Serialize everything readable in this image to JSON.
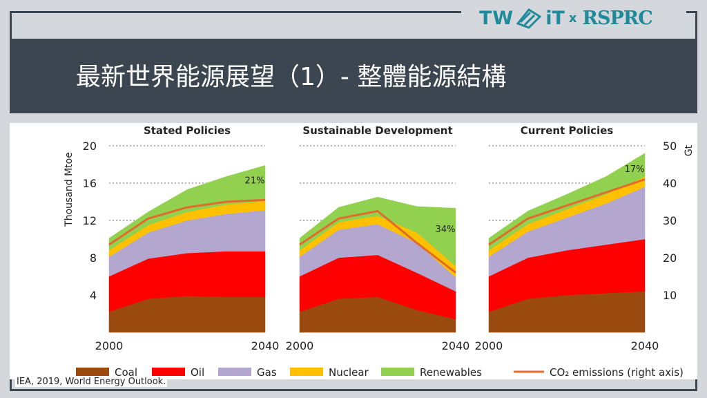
{
  "slide": {
    "title": "最新世界能源展望（1）- 整體能源結構",
    "source": "IEA, 2019, World Energy Outlook.",
    "logo": {
      "tw": "TW",
      "it": "iT",
      "x": "x",
      "partner": "RSPRC"
    }
  },
  "colors": {
    "frame": "#3b4650",
    "background": "#d4d8dc",
    "coal": "#9a4a0e",
    "oil": "#ff0000",
    "gas": "#b3a6cf",
    "nuclear": "#ffc000",
    "renewables": "#92d050",
    "co2": "#e26b2b"
  },
  "chart_data": {
    "type": "area",
    "left_axis_label": "Thousand Mtoe",
    "right_axis_label": "Gt",
    "left_ticks": [
      "20",
      "16",
      "12",
      "8",
      "4"
    ],
    "right_ticks": [
      "50",
      "40",
      "30",
      "20",
      "10"
    ],
    "ylim_left": [
      0,
      20
    ],
    "ylim_right": [
      0,
      50
    ],
    "stack_order": [
      "Coal",
      "Oil",
      "Gas",
      "Nuclear",
      "Renewables"
    ],
    "x": [
      2000,
      2010,
      2020,
      2030,
      2040
    ],
    "x_tick_labels": [
      "2000",
      "2040"
    ],
    "legend": [
      {
        "key": "coal",
        "label": "Coal"
      },
      {
        "key": "oil",
        "label": "Oil"
      },
      {
        "key": "gas",
        "label": "Gas"
      },
      {
        "key": "nuclear",
        "label": "Nuclear"
      },
      {
        "key": "renewables",
        "label": "Renewables"
      },
      {
        "key": "co2",
        "label": "CO₂ emissions (right axis)"
      }
    ],
    "panels": [
      {
        "title": "Stated Policies",
        "share_label": "21%",
        "series": [
          {
            "name": "Coal",
            "values": [
              2.2,
              3.6,
              3.9,
              3.8,
              3.8
            ]
          },
          {
            "name": "Oil",
            "values": [
              3.8,
              4.3,
              4.6,
              4.9,
              4.9
            ]
          },
          {
            "name": "Gas",
            "values": [
              2.1,
              2.8,
              3.5,
              4.0,
              4.4
            ]
          },
          {
            "name": "Nuclear",
            "values": [
              0.7,
              0.8,
              0.9,
              1.0,
              1.0
            ]
          },
          {
            "name": "Renewables",
            "values": [
              1.3,
              1.4,
              2.4,
              3.0,
              3.8
            ]
          }
        ],
        "co2": [
          23.5,
          30.5,
          33.5,
          35.0,
          35.5
        ]
      },
      {
        "title": "Sustainable Development",
        "share_label": "34%",
        "series": [
          {
            "name": "Coal",
            "values": [
              2.2,
              3.6,
              3.8,
              2.4,
              1.4
            ]
          },
          {
            "name": "Oil",
            "values": [
              3.8,
              4.4,
              4.5,
              4.0,
              3.0
            ]
          },
          {
            "name": "Gas",
            "values": [
              2.1,
              3.0,
              3.3,
              3.2,
              1.5
            ]
          },
          {
            "name": "Nuclear",
            "values": [
              0.7,
              0.8,
              0.9,
              1.1,
              1.2
            ]
          },
          {
            "name": "Renewables",
            "values": [
              1.3,
              1.6,
              2.0,
              2.8,
              6.2
            ]
          }
        ],
        "co2": [
          23.5,
          30.5,
          32.5,
          24.0,
          16.0
        ]
      },
      {
        "title": "Current Policies",
        "share_label": "17%",
        "series": [
          {
            "name": "Coal",
            "values": [
              2.2,
              3.6,
              4.0,
              4.2,
              4.4
            ]
          },
          {
            "name": "Oil",
            "values": [
              3.8,
              4.4,
              4.8,
              5.2,
              5.6
            ]
          },
          {
            "name": "Gas",
            "values": [
              2.1,
              2.8,
              3.5,
              4.4,
              5.6
            ]
          },
          {
            "name": "Nuclear",
            "values": [
              0.7,
              0.8,
              0.9,
              1.0,
              1.1
            ]
          },
          {
            "name": "Renewables",
            "values": [
              1.3,
              1.4,
              1.6,
              1.9,
              2.5
            ]
          }
        ],
        "co2": [
          23.5,
          30.5,
          34.0,
          37.5,
          41.0
        ]
      }
    ]
  }
}
